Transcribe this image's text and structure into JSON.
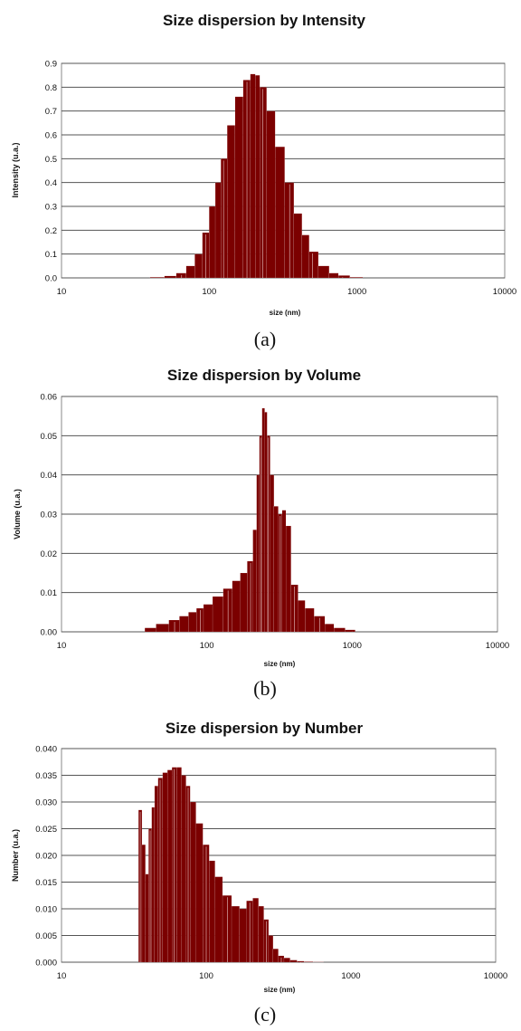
{
  "chart_data": [
    {
      "type": "bar",
      "title": "Size dispersion by Intensity",
      "xlabel": "size (nm)",
      "ylabel": "Intensity (u.a.)",
      "x_scale": "log",
      "xlim": [
        10,
        10000
      ],
      "ylim": [
        0,
        0.9
      ],
      "grid": true,
      "x_ticks": [
        10,
        100,
        1000,
        10000
      ],
      "x_tick_labels": [
        "10",
        "100",
        "1000",
        "10000"
      ],
      "y_ticks": [
        0,
        0.1,
        0.2,
        0.3,
        0.4,
        0.5,
        0.6,
        0.7,
        0.8,
        0.9
      ],
      "y_tick_labels": [
        "0.0",
        "0.1",
        "0.2",
        "0.3",
        "0.4",
        "0.5",
        "0.6",
        "0.7",
        "0.8",
        "0.9"
      ],
      "panel_label": "(a)",
      "x": [
        35,
        45,
        55,
        65,
        75,
        85,
        95,
        105,
        115,
        125,
        140,
        160,
        180,
        200,
        210,
        230,
        260,
        300,
        350,
        400,
        450,
        500,
        600,
        700,
        800,
        1000,
        1200
      ],
      "values": [
        0.0,
        0.003,
        0.008,
        0.02,
        0.05,
        0.1,
        0.19,
        0.3,
        0.4,
        0.5,
        0.64,
        0.76,
        0.83,
        0.855,
        0.85,
        0.8,
        0.7,
        0.55,
        0.4,
        0.27,
        0.18,
        0.11,
        0.05,
        0.02,
        0.01,
        0.003,
        0.0
      ]
    },
    {
      "type": "bar",
      "title": "Size dispersion by Volume",
      "xlabel": "size (nm)",
      "ylabel": "Volume (u.a.)",
      "x_scale": "log",
      "xlim": [
        10,
        10000
      ],
      "ylim": [
        0,
        0.06
      ],
      "grid": true,
      "x_ticks": [
        10,
        100,
        1000,
        10000
      ],
      "x_tick_labels": [
        "10",
        "100",
        "1000",
        "10000"
      ],
      "y_ticks": [
        0,
        0.01,
        0.02,
        0.03,
        0.04,
        0.05,
        0.06
      ],
      "y_tick_labels": [
        "0.00",
        "0.01",
        "0.02",
        "0.03",
        "0.04",
        "0.05",
        "0.06"
      ],
      "panel_label": "(b)",
      "x": [
        35,
        40,
        50,
        60,
        70,
        80,
        90,
        100,
        120,
        140,
        160,
        180,
        200,
        215,
        225,
        235,
        245,
        255,
        265,
        280,
        300,
        320,
        340,
        360,
        400,
        450,
        500,
        600,
        700,
        800,
        1000,
        1100
      ],
      "values": [
        0.0,
        0.001,
        0.002,
        0.003,
        0.004,
        0.005,
        0.006,
        0.007,
        0.009,
        0.011,
        0.013,
        0.015,
        0.018,
        0.026,
        0.04,
        0.05,
        0.057,
        0.056,
        0.05,
        0.04,
        0.032,
        0.03,
        0.031,
        0.027,
        0.012,
        0.008,
        0.006,
        0.004,
        0.002,
        0.001,
        0.0005,
        0.0
      ]
    },
    {
      "type": "bar",
      "title": "Size dispersion by Number",
      "xlabel": "size (nm)",
      "ylabel": "Number (u.a.)",
      "x_scale": "log",
      "xlim": [
        10,
        10000
      ],
      "ylim": [
        0,
        0.04
      ],
      "grid": true,
      "x_ticks": [
        10,
        100,
        1000,
        10000
      ],
      "x_tick_labels": [
        "10",
        "100",
        "1000",
        "10000"
      ],
      "y_ticks": [
        0,
        0.005,
        0.01,
        0.015,
        0.02,
        0.025,
        0.03,
        0.035,
        0.04
      ],
      "y_tick_labels": [
        "0.000",
        "0.005",
        "0.010",
        "0.015",
        "0.020",
        "0.025",
        "0.030",
        "0.035",
        "0.040"
      ],
      "panel_label": "(c)",
      "x": [
        35,
        37,
        39,
        41,
        43,
        45,
        48,
        52,
        56,
        60,
        65,
        70,
        75,
        80,
        90,
        100,
        110,
        120,
        140,
        160,
        180,
        200,
        220,
        240,
        260,
        280,
        300,
        330,
        360,
        400,
        450,
        500,
        600,
        700
      ],
      "values": [
        0.0285,
        0.022,
        0.0165,
        0.025,
        0.029,
        0.033,
        0.0345,
        0.0355,
        0.036,
        0.0365,
        0.0365,
        0.035,
        0.033,
        0.03,
        0.026,
        0.022,
        0.019,
        0.016,
        0.0125,
        0.0105,
        0.01,
        0.0115,
        0.012,
        0.0105,
        0.008,
        0.005,
        0.0025,
        0.0012,
        0.0008,
        0.0004,
        0.0002,
        0.0001,
        5e-05,
        0.0
      ]
    }
  ]
}
